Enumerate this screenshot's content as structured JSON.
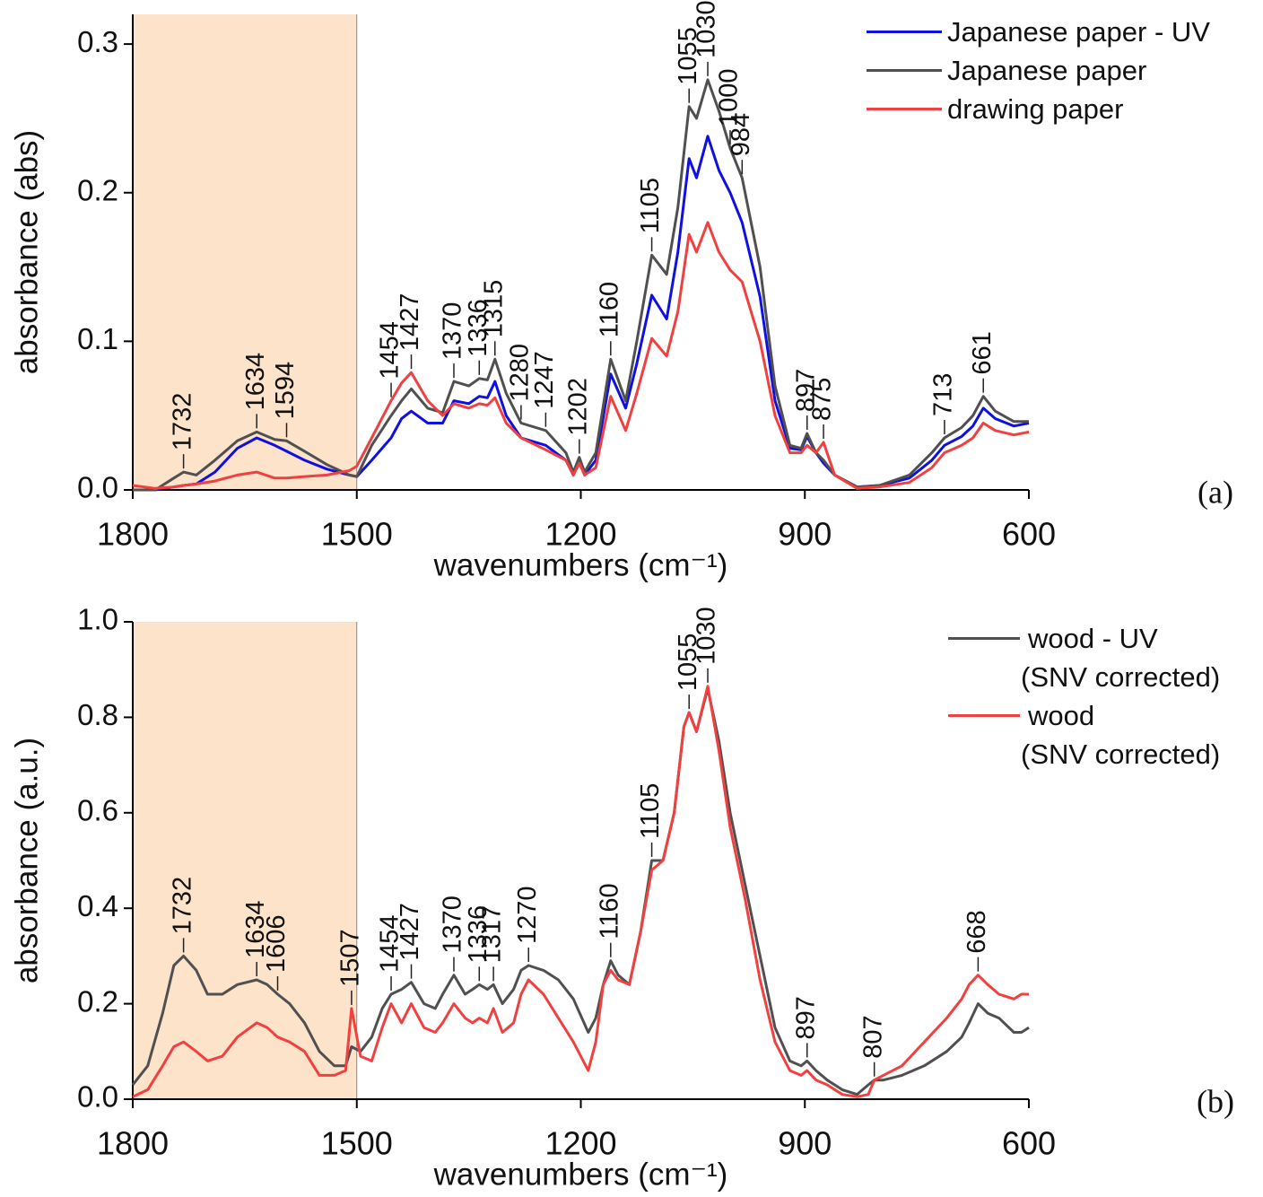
{
  "chart_data": [
    {
      "type": "line",
      "panel_label": "(a)",
      "x_label": "wavenumbers (cm⁻¹)",
      "y_label": "absorbance (abs)",
      "xlim": [
        1800,
        600
      ],
      "xticks": [
        1800,
        1500,
        1200,
        900,
        600
      ],
      "ylim": [
        0,
        0.32
      ],
      "yticks": [
        {
          "value": 0,
          "label": "0.0"
        },
        {
          "value": 0.1,
          "label": "0.1"
        },
        {
          "value": 0.2,
          "label": "0.2"
        },
        {
          "value": 0.3,
          "label": "0.3"
        }
      ],
      "highlight": {
        "range": [
          1800,
          1500
        ],
        "color": "#fde3ca"
      },
      "legend": "upper right",
      "x": [
        1800,
        1770,
        1745,
        1732,
        1715,
        1690,
        1660,
        1634,
        1610,
        1594,
        1570,
        1540,
        1510,
        1500,
        1480,
        1454,
        1440,
        1427,
        1405,
        1385,
        1370,
        1350,
        1336,
        1325,
        1315,
        1300,
        1280,
        1247,
        1220,
        1210,
        1202,
        1195,
        1180,
        1160,
        1140,
        1125,
        1105,
        1085,
        1070,
        1055,
        1045,
        1030,
        1015,
        1000,
        984,
        960,
        940,
        920,
        905,
        897,
        885,
        875,
        860,
        830,
        800,
        760,
        730,
        713,
        690,
        675,
        661,
        645,
        620,
        600
      ],
      "series": [
        {
          "name": "Japanese paper - UV",
          "color": "#1010e0",
          "values": [
            0,
            0,
            0.002,
            0.003,
            0.004,
            0.012,
            0.028,
            0.035,
            0.03,
            0.026,
            0.02,
            0.014,
            0.01,
            0.009,
            0.02,
            0.035,
            0.048,
            0.053,
            0.045,
            0.045,
            0.06,
            0.058,
            0.063,
            0.062,
            0.073,
            0.05,
            0.035,
            0.03,
            0.02,
            0.01,
            0.02,
            0.01,
            0.02,
            0.078,
            0.055,
            0.085,
            0.131,
            0.115,
            0.16,
            0.223,
            0.21,
            0.238,
            0.215,
            0.2,
            0.18,
            0.13,
            0.06,
            0.028,
            0.027,
            0.036,
            0.025,
            0.018,
            0.01,
            0.002,
            0.003,
            0.008,
            0.02,
            0.03,
            0.036,
            0.043,
            0.055,
            0.048,
            0.043,
            0.045
          ]
        },
        {
          "name": "Japanese paper",
          "color": "#505050",
          "values": [
            0,
            0,
            0.008,
            0.012,
            0.01,
            0.02,
            0.033,
            0.039,
            0.034,
            0.033,
            0.026,
            0.017,
            0.01,
            0.009,
            0.03,
            0.05,
            0.06,
            0.068,
            0.055,
            0.052,
            0.073,
            0.07,
            0.075,
            0.074,
            0.088,
            0.065,
            0.045,
            0.04,
            0.025,
            0.012,
            0.022,
            0.012,
            0.025,
            0.088,
            0.06,
            0.1,
            0.158,
            0.145,
            0.19,
            0.258,
            0.25,
            0.276,
            0.255,
            0.23,
            0.21,
            0.15,
            0.07,
            0.03,
            0.028,
            0.038,
            0.025,
            0.02,
            0.01,
            0.002,
            0.003,
            0.01,
            0.025,
            0.035,
            0.042,
            0.05,
            0.063,
            0.053,
            0.046,
            0.046
          ]
        },
        {
          "name": "drawing paper",
          "color": "#f04040",
          "values": [
            0.003,
            0.001,
            0.002,
            0.003,
            0.004,
            0.006,
            0.01,
            0.012,
            0.008,
            0.008,
            0.009,
            0.01,
            0.013,
            0.016,
            0.035,
            0.06,
            0.072,
            0.079,
            0.06,
            0.05,
            0.058,
            0.055,
            0.058,
            0.057,
            0.062,
            0.045,
            0.035,
            0.027,
            0.02,
            0.01,
            0.018,
            0.01,
            0.015,
            0.063,
            0.04,
            0.065,
            0.102,
            0.09,
            0.12,
            0.172,
            0.16,
            0.18,
            0.16,
            0.148,
            0.14,
            0.1,
            0.05,
            0.025,
            0.025,
            0.03,
            0.025,
            0.032,
            0.01,
            0.001,
            0.002,
            0.005,
            0.015,
            0.025,
            0.03,
            0.035,
            0.045,
            0.04,
            0.037,
            0.039
          ]
        }
      ],
      "peak_labels": [
        1732,
        1634,
        1594,
        1454,
        1427,
        1370,
        1336,
        1315,
        1280,
        1247,
        1202,
        1160,
        1105,
        1055,
        1030,
        1000,
        984,
        897,
        875,
        713,
        661
      ]
    },
    {
      "type": "line",
      "panel_label": "(b)",
      "x_label": "wavenumbers (cm⁻¹)",
      "y_label": "absorbance (a.u.)",
      "xlim": [
        1800,
        600
      ],
      "xticks": [
        1800,
        1500,
        1200,
        900,
        600
      ],
      "ylim": [
        0,
        1
      ],
      "yticks": [
        {
          "value": 0,
          "label": "0.0"
        },
        {
          "value": 0.2,
          "label": "0.2"
        },
        {
          "value": 0.4,
          "label": "0.4"
        },
        {
          "value": 0.6,
          "label": "0.6"
        },
        {
          "value": 0.8,
          "label": "0.8"
        },
        {
          "value": 1,
          "label": "1.0"
        }
      ],
      "highlight": {
        "range": [
          1800,
          1500
        ],
        "color": "#fde3ca"
      },
      "legend": "upper right",
      "x": [
        1800,
        1780,
        1760,
        1745,
        1732,
        1715,
        1700,
        1680,
        1660,
        1634,
        1620,
        1606,
        1590,
        1570,
        1550,
        1530,
        1515,
        1507,
        1495,
        1480,
        1466,
        1454,
        1440,
        1427,
        1410,
        1395,
        1385,
        1370,
        1355,
        1345,
        1336,
        1325,
        1317,
        1305,
        1290,
        1280,
        1270,
        1250,
        1230,
        1210,
        1190,
        1180,
        1170,
        1160,
        1150,
        1135,
        1120,
        1105,
        1090,
        1075,
        1062,
        1055,
        1045,
        1030,
        1015,
        1000,
        980,
        960,
        940,
        920,
        905,
        897,
        885,
        870,
        850,
        830,
        815,
        807,
        795,
        770,
        740,
        710,
        690,
        680,
        668,
        655,
        640,
        620,
        610,
        600
      ],
      "series": [
        {
          "name": "wood - UV\n(SNV corrected)",
          "color": "#505050",
          "values": [
            0.03,
            0.07,
            0.18,
            0.28,
            0.3,
            0.27,
            0.22,
            0.22,
            0.24,
            0.25,
            0.24,
            0.22,
            0.2,
            0.16,
            0.1,
            0.07,
            0.07,
            0.11,
            0.1,
            0.13,
            0.19,
            0.22,
            0.23,
            0.245,
            0.2,
            0.19,
            0.22,
            0.26,
            0.22,
            0.23,
            0.24,
            0.23,
            0.24,
            0.2,
            0.23,
            0.27,
            0.28,
            0.27,
            0.25,
            0.21,
            0.14,
            0.17,
            0.24,
            0.29,
            0.26,
            0.24,
            0.35,
            0.5,
            0.5,
            0.6,
            0.78,
            0.81,
            0.77,
            0.86,
            0.75,
            0.6,
            0.45,
            0.3,
            0.15,
            0.08,
            0.07,
            0.08,
            0.06,
            0.04,
            0.02,
            0.01,
            0.03,
            0.04,
            0.04,
            0.05,
            0.07,
            0.1,
            0.13,
            0.16,
            0.2,
            0.18,
            0.17,
            0.14,
            0.14,
            0.15
          ]
        },
        {
          "name": "wood\n(SNV corrected)",
          "color": "#f04040",
          "values": [
            0.005,
            0.02,
            0.07,
            0.11,
            0.12,
            0.1,
            0.08,
            0.09,
            0.13,
            0.16,
            0.15,
            0.13,
            0.12,
            0.1,
            0.05,
            0.05,
            0.06,
            0.19,
            0.09,
            0.08,
            0.15,
            0.2,
            0.16,
            0.2,
            0.15,
            0.14,
            0.16,
            0.2,
            0.17,
            0.16,
            0.17,
            0.16,
            0.19,
            0.14,
            0.16,
            0.22,
            0.25,
            0.22,
            0.17,
            0.12,
            0.06,
            0.12,
            0.24,
            0.27,
            0.25,
            0.24,
            0.35,
            0.48,
            0.5,
            0.6,
            0.78,
            0.81,
            0.77,
            0.865,
            0.73,
            0.57,
            0.42,
            0.25,
            0.12,
            0.06,
            0.05,
            0.06,
            0.04,
            0.03,
            0.01,
            0.005,
            0.01,
            0.04,
            0.05,
            0.07,
            0.12,
            0.17,
            0.21,
            0.24,
            0.26,
            0.24,
            0.22,
            0.21,
            0.22,
            0.22
          ]
        }
      ],
      "peak_labels": [
        1732,
        1634,
        1606,
        1507,
        1454,
        1427,
        1370,
        1336,
        1317,
        1270,
        1160,
        1105,
        1055,
        1030,
        897,
        807,
        668
      ]
    }
  ]
}
